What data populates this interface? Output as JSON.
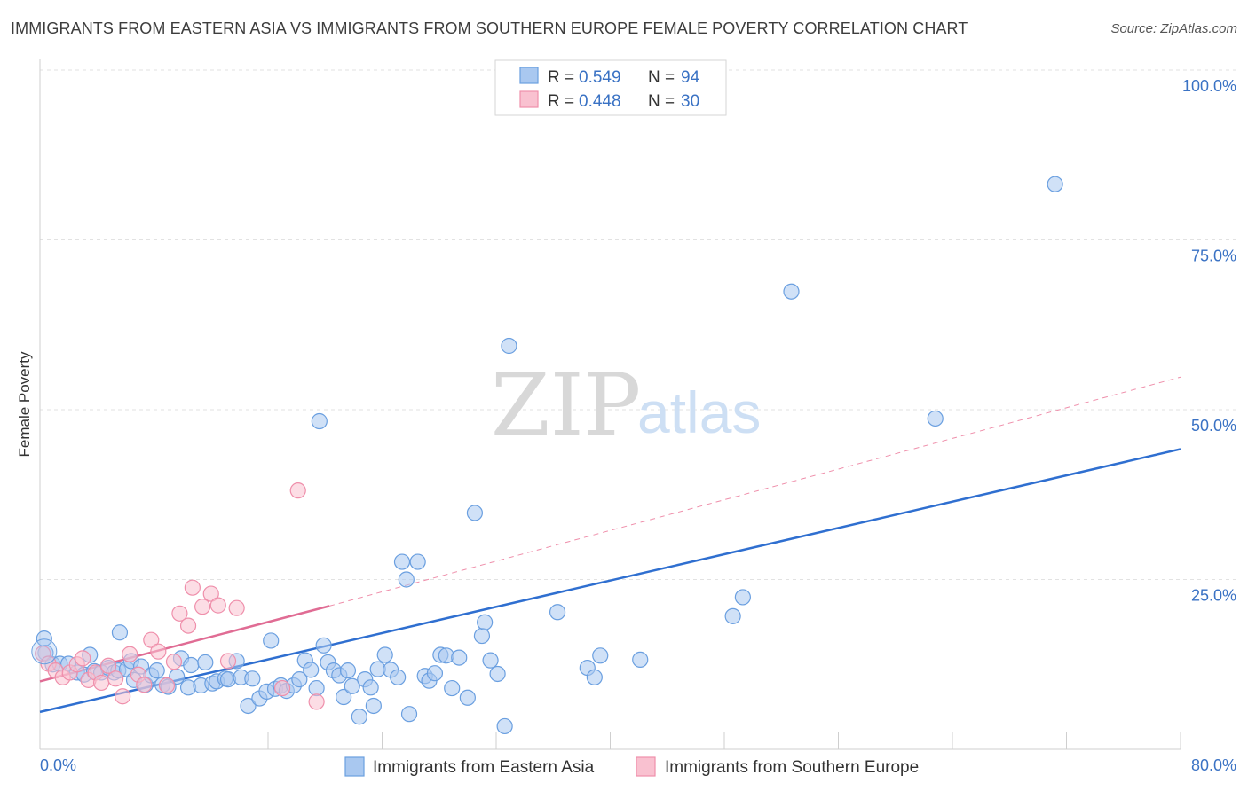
{
  "title": "IMMIGRANTS FROM EASTERN ASIA VS IMMIGRANTS FROM SOUTHERN EUROPE FEMALE POVERTY CORRELATION CHART",
  "source": "Source: ZipAtlas.com",
  "watermark": {
    "zip": "ZIP",
    "atlas": "atlas"
  },
  "legend": {
    "r_label": "R =",
    "n_label": "N =",
    "rows": [
      {
        "r": "0.549",
        "n": "94",
        "color": "#a9c8f0",
        "stroke": "#6a9fe0"
      },
      {
        "r": "0.448",
        "n": "30",
        "color": "#f9c1d0",
        "stroke": "#ef8fab"
      }
    ]
  },
  "chart_data": {
    "type": "scatter",
    "title": "IMMIGRANTS FROM EASTERN ASIA VS IMMIGRANTS FROM SOUTHERN EUROPE FEMALE POVERTY CORRELATION CHART",
    "xlabel": "",
    "ylabel": "Female Poverty",
    "xlim": [
      0,
      80
    ],
    "ylim": [
      0,
      100
    ],
    "x_tick_labels": [
      "0.0%",
      "80.0%"
    ],
    "y_ticks": [
      25,
      50,
      75,
      100
    ],
    "y_tick_labels": [
      "25.0%",
      "50.0%",
      "75.0%",
      "100.0%"
    ],
    "grid": true,
    "legend_position": "top-center",
    "series": [
      {
        "name": "Immigrants from Eastern Asia",
        "color": "#a9c8f0",
        "stroke": "#6a9fe0",
        "trend": {
          "x0": 0,
          "y0": 5.5,
          "x1": 80,
          "y1": 44.2,
          "color": "#2f6fd0"
        },
        "points": [
          [
            0.3,
            16.3
          ],
          [
            0.4,
            14.2
          ],
          [
            0.9,
            12.5
          ],
          [
            1.4,
            12.6
          ],
          [
            2.0,
            12.6
          ],
          [
            2.6,
            11.3
          ],
          [
            3.1,
            11.0
          ],
          [
            3.5,
            13.9
          ],
          [
            3.8,
            11.5
          ],
          [
            4.3,
            11.3
          ],
          [
            4.8,
            12.0
          ],
          [
            5.2,
            11.3
          ],
          [
            5.5,
            11.6
          ],
          [
            5.6,
            17.2
          ],
          [
            6.1,
            11.8
          ],
          [
            6.4,
            13.0
          ],
          [
            6.6,
            10.2
          ],
          [
            7.1,
            12.2
          ],
          [
            7.4,
            9.5
          ],
          [
            7.8,
            10.9
          ],
          [
            8.2,
            11.6
          ],
          [
            8.6,
            9.5
          ],
          [
            9.0,
            9.2
          ],
          [
            9.6,
            10.7
          ],
          [
            9.9,
            13.4
          ],
          [
            10.4,
            9.1
          ],
          [
            10.6,
            12.4
          ],
          [
            11.3,
            9.4
          ],
          [
            11.6,
            12.8
          ],
          [
            12.1,
            9.7
          ],
          [
            12.4,
            10.0
          ],
          [
            13.0,
            10.4
          ],
          [
            13.2,
            10.3
          ],
          [
            13.8,
            13.0
          ],
          [
            14.1,
            10.6
          ],
          [
            14.6,
            6.4
          ],
          [
            14.9,
            10.4
          ],
          [
            15.4,
            7.5
          ],
          [
            15.9,
            8.5
          ],
          [
            16.2,
            16.0
          ],
          [
            16.5,
            8.9
          ],
          [
            16.9,
            9.4
          ],
          [
            17.3,
            8.6
          ],
          [
            17.8,
            9.4
          ],
          [
            18.2,
            10.3
          ],
          [
            18.6,
            13.1
          ],
          [
            19.0,
            11.7
          ],
          [
            19.4,
            9.0
          ],
          [
            19.6,
            48.3
          ],
          [
            19.9,
            15.3
          ],
          [
            20.2,
            12.8
          ],
          [
            20.6,
            11.6
          ],
          [
            21.0,
            10.9
          ],
          [
            21.3,
            7.7
          ],
          [
            21.6,
            11.6
          ],
          [
            21.9,
            9.3
          ],
          [
            22.4,
            4.8
          ],
          [
            22.8,
            10.3
          ],
          [
            23.2,
            9.1
          ],
          [
            23.4,
            6.4
          ],
          [
            23.7,
            11.8
          ],
          [
            24.2,
            13.9
          ],
          [
            24.6,
            11.7
          ],
          [
            25.1,
            10.6
          ],
          [
            25.4,
            27.6
          ],
          [
            25.7,
            25.0
          ],
          [
            25.9,
            5.2
          ],
          [
            26.5,
            27.6
          ],
          [
            27.0,
            10.8
          ],
          [
            27.3,
            10.1
          ],
          [
            27.7,
            11.2
          ],
          [
            28.1,
            13.9
          ],
          [
            28.5,
            13.8
          ],
          [
            28.9,
            9.0
          ],
          [
            29.4,
            13.5
          ],
          [
            30.0,
            7.6
          ],
          [
            30.5,
            34.8
          ],
          [
            31.0,
            16.7
          ],
          [
            31.2,
            18.7
          ],
          [
            31.6,
            13.1
          ],
          [
            32.1,
            11.1
          ],
          [
            32.6,
            3.4
          ],
          [
            32.9,
            59.4
          ],
          [
            36.3,
            20.2
          ],
          [
            38.4,
            12.0
          ],
          [
            38.9,
            10.6
          ],
          [
            39.3,
            13.8
          ],
          [
            42.1,
            13.2
          ],
          [
            48.6,
            19.6
          ],
          [
            49.3,
            22.4
          ],
          [
            52.7,
            67.4
          ],
          [
            62.8,
            48.7
          ],
          [
            71.2,
            83.2
          ]
        ]
      },
      {
        "name": "Immigrants from Southern Europe",
        "color": "#f9c1d0",
        "stroke": "#ef8fab",
        "trend": {
          "x0": 0,
          "y0": 10.0,
          "x1": 20.3,
          "y1": 21.1,
          "color": "#e06c94"
        },
        "trend_ext": {
          "x0": 20.3,
          "y0": 21.1,
          "x1": 80,
          "y1": 54.8
        },
        "points": [
          [
            0.2,
            14.1
          ],
          [
            0.6,
            12.6
          ],
          [
            1.1,
            11.6
          ],
          [
            1.6,
            10.6
          ],
          [
            2.1,
            11.3
          ],
          [
            2.6,
            12.5
          ],
          [
            3.0,
            13.4
          ],
          [
            3.4,
            10.2
          ],
          [
            3.9,
            11.3
          ],
          [
            4.3,
            9.8
          ],
          [
            4.8,
            12.3
          ],
          [
            5.3,
            10.4
          ],
          [
            5.8,
            7.8
          ],
          [
            6.3,
            14.0
          ],
          [
            6.9,
            11.0
          ],
          [
            7.3,
            9.5
          ],
          [
            7.8,
            16.1
          ],
          [
            8.3,
            14.4
          ],
          [
            8.9,
            9.4
          ],
          [
            9.4,
            12.9
          ],
          [
            9.8,
            20.0
          ],
          [
            10.4,
            18.2
          ],
          [
            10.7,
            23.8
          ],
          [
            11.4,
            21.0
          ],
          [
            12.0,
            22.9
          ],
          [
            12.5,
            21.2
          ],
          [
            13.2,
            13.0
          ],
          [
            13.8,
            20.8
          ],
          [
            17.0,
            9.0
          ],
          [
            18.1,
            38.1
          ],
          [
            19.4,
            7.0
          ]
        ]
      }
    ]
  }
}
